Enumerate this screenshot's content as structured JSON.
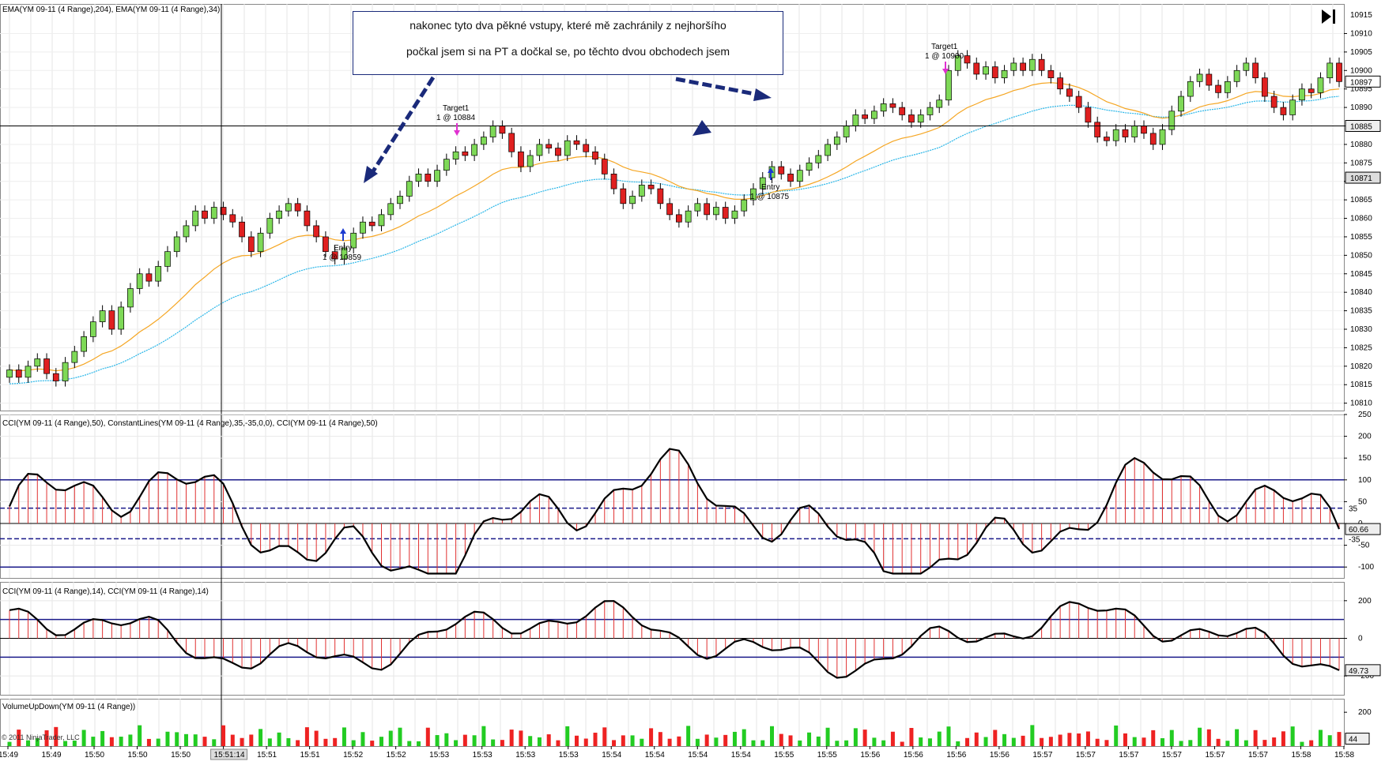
{
  "panels": {
    "price": {
      "label": "EMA(YM 09-11 (4 Range),204),  EMA(YM 09-11 (4 Range),34)",
      "ylim": [
        10808,
        10918
      ],
      "ticks": [
        10910,
        10905,
        10900,
        10895,
        10890,
        10885,
        10880,
        10875,
        10870,
        10865,
        10860,
        10855,
        10850,
        10845,
        10840,
        10835,
        10830,
        10825,
        10820,
        10815,
        10810
      ],
      "current_price": "10897",
      "hline_price": "10885",
      "ema204_tag": "10871",
      "ema_fast_color": "#f5a623",
      "ema_slow_color": "#29b6e8",
      "top_tick": "10915"
    },
    "cci50": {
      "label": "CCI(YM 09-11 (4 Range),50), ConstantLines(YM 09-11 (4 Range),35,-35,0,0), CCI(YM 09-11 (4 Range),50)",
      "ticks": [
        "250",
        "200",
        "150",
        "100",
        "50",
        "0",
        "-50",
        "-100"
      ],
      "value_tag": "60.66",
      "tag_35": "35",
      "tag_m35": "-35",
      "ylim": [
        -125,
        250
      ]
    },
    "cci14": {
      "label": "CCI(YM 09-11 (4 Range),14), CCI(YM 09-11 (4 Range),14)",
      "ticks": [
        "200",
        "0",
        "-200"
      ],
      "value_tag": "49.73",
      "ylim": [
        -300,
        300
      ]
    },
    "volume": {
      "label": "VolumeUpDown(YM 09-11 (4 Range))",
      "ticks": [
        "200"
      ],
      "value_tag": "44"
    }
  },
  "time_axis": [
    "15:49",
    "15:49",
    "15:50",
    "15:50",
    "15:50",
    "15:51:14",
    "15:51",
    "15:51",
    "15:52",
    "15:52",
    "15:53",
    "15:53",
    "15:53",
    "15:53",
    "15:54",
    "15:54",
    "15:54",
    "15:54",
    "15:55",
    "15:55",
    "15:56",
    "15:56",
    "15:56",
    "15:56",
    "15:57",
    "15:57",
    "15:57",
    "15:57",
    "15:57",
    "15:57",
    "15:58",
    "15:58"
  ],
  "annotation": {
    "line1": "nakonec tyto dva pěkné vstupy, které mě zachránily z nejhoršího",
    "line2": "počkal jsem si na PT a dočkal se, po těchto dvou obchodech jsem"
  },
  "trades": [
    {
      "type": "Entry",
      "text": "Entry",
      "qty": "1 @ 10859"
    },
    {
      "type": "Target",
      "text": "Target1",
      "qty": "1 @ 10884"
    },
    {
      "type": "Entry",
      "text": "Entry",
      "qty": "1 @ 10875"
    },
    {
      "type": "Target",
      "text": "Target1",
      "qty": "1 @ 10900"
    }
  ],
  "copyright": "© 2011 NinjaTrader, LLC",
  "colors": {
    "up": "#7ed957",
    "down": "#e02020",
    "cci_bar": "#e03030",
    "line_blue": "#1a1a8a"
  },
  "chart_data": {
    "type": "candlestick",
    "series_name": "YM 09-11 (4 Range)",
    "ohlc_close": [
      10819,
      10817,
      10820,
      10822,
      10818,
      10816,
      10821,
      10824,
      10828,
      10832,
      10835,
      10830,
      10836,
      10841,
      10845,
      10843,
      10847,
      10851,
      10855,
      10858,
      10862,
      10860,
      10863,
      10861,
      10859,
      10855,
      10851,
      10856,
      10860,
      10862,
      10864,
      10862,
      10858,
      10855,
      10851,
      10849,
      10852,
      10856,
      10859,
      10858,
      10861,
      10864,
      10866,
      10870,
      10872,
      10870,
      10873,
      10876,
      10878,
      10877,
      10880,
      10882,
      10885,
      10883,
      10878,
      10874,
      10877,
      10880,
      10879,
      10877,
      10881,
      10880,
      10878,
      10876,
      10872,
      10868,
      10864,
      10866,
      10869,
      10868,
      10864,
      10861,
      10859,
      10862,
      10864,
      10861,
      10863,
      10860,
      10862,
      10865,
      10868,
      10871,
      10874,
      10872,
      10870,
      10873,
      10875,
      10877,
      10880,
      10882,
      10885,
      10888,
      10887,
      10889,
      10891,
      10890,
      10888,
      10886,
      10888,
      10890,
      10892,
      10900,
      10904,
      10902,
      10899,
      10901,
      10898,
      10900,
      10902,
      10900,
      10903,
      10900,
      10898,
      10895,
      10893,
      10890,
      10886,
      10882,
      10881,
      10884,
      10882,
      10885,
      10883,
      10880,
      10884,
      10889,
      10893,
      10897,
      10899,
      10896,
      10894,
      10897,
      10900,
      10902,
      10898,
      10893,
      10890,
      10888,
      10892,
      10895,
      10894,
      10898,
      10902,
      10897
    ]
  }
}
